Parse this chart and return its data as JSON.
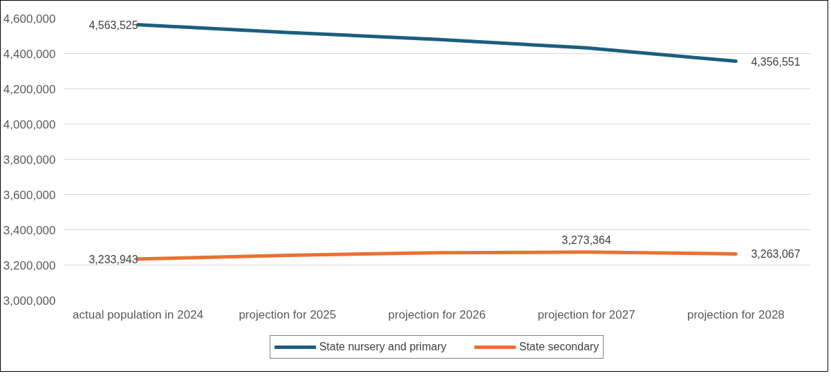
{
  "chart_data": {
    "type": "line",
    "categories": [
      "actual population in 2024",
      "projection for 2025",
      "projection for 2026",
      "projection for 2027",
      "projection for 2028"
    ],
    "series": [
      {
        "name": "State nursery and primary",
        "color": "#1b5e80",
        "values": [
          4563525,
          4520000,
          4480000,
          4432000,
          4356551
        ],
        "value_labels": [
          "4,563,525",
          null,
          null,
          null,
          "4,356,551"
        ]
      },
      {
        "name": "State secondary",
        "color": "#e97132",
        "values": [
          3233943,
          3255000,
          3270000,
          3273364,
          3263067
        ],
        "value_labels": [
          "3,233,943",
          null,
          null,
          "3,273,364",
          "3,263,067"
        ]
      }
    ],
    "ylim": [
      3000000,
      4600000
    ],
    "yticks": [
      {
        "value": 3000000,
        "label": "3,000,000"
      },
      {
        "value": 3200000,
        "label": "3,200,000"
      },
      {
        "value": 3400000,
        "label": "3,400,000"
      },
      {
        "value": 3600000,
        "label": "3,600,000"
      },
      {
        "value": 3800000,
        "label": "3,800,000"
      },
      {
        "value": 4000000,
        "label": "4,000,000"
      },
      {
        "value": 4200000,
        "label": "4,200,000"
      },
      {
        "value": 4400000,
        "label": "4,400,000"
      },
      {
        "value": 4600000,
        "label": "4,600,000"
      }
    ],
    "grid": "y",
    "legend": "bottom",
    "marker": "none",
    "line_style": "solid"
  }
}
